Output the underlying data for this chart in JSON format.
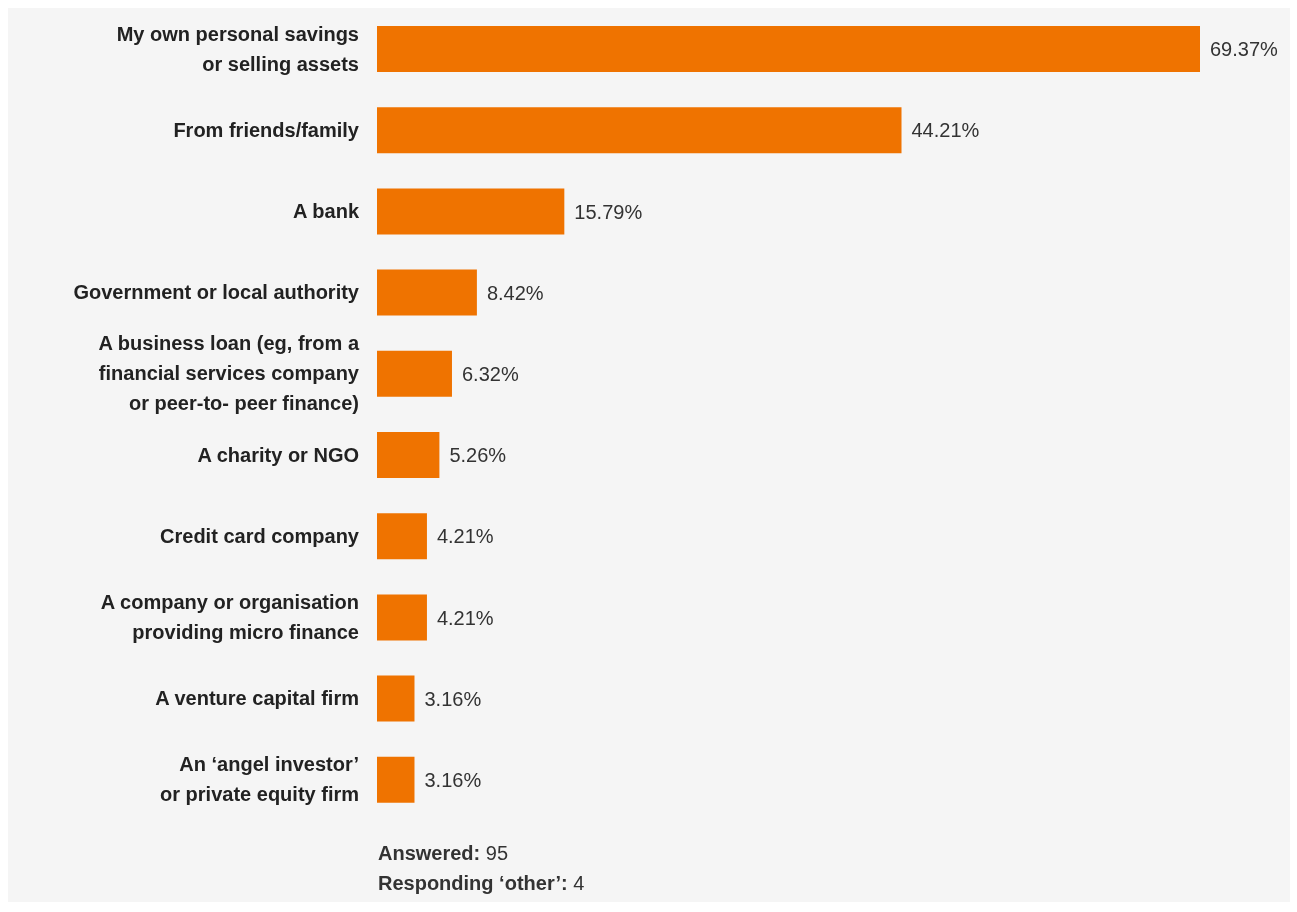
{
  "chart_data": {
    "type": "bar",
    "orientation": "horizontal",
    "categories": [
      "My own personal savings\nor selling assets",
      "From friends/family",
      "A bank",
      "Government or local authority",
      "A business loan (eg, from a\nfinancial services company\nor peer-to- peer finance)",
      "A charity or NGO",
      "Credit card company",
      "A company or organisation\nproviding micro finance",
      "A venture capital firm",
      "An ‘angel investor’\nor private equity firm"
    ],
    "values": [
      69.37,
      44.21,
      15.79,
      8.42,
      6.32,
      5.26,
      4.21,
      4.21,
      3.16,
      3.16
    ],
    "color": "#ef7300",
    "value_labels": [
      "69.37%",
      "44.21%",
      "15.79%",
      "8.42%",
      "6.32%",
      "5.26%",
      "4.21%",
      "4.21%",
      "3.16%",
      "3.16%"
    ],
    "annotations": [
      "Answered: 95",
      "Responding ‘other’: 4"
    ],
    "grid": false,
    "legend": false
  }
}
